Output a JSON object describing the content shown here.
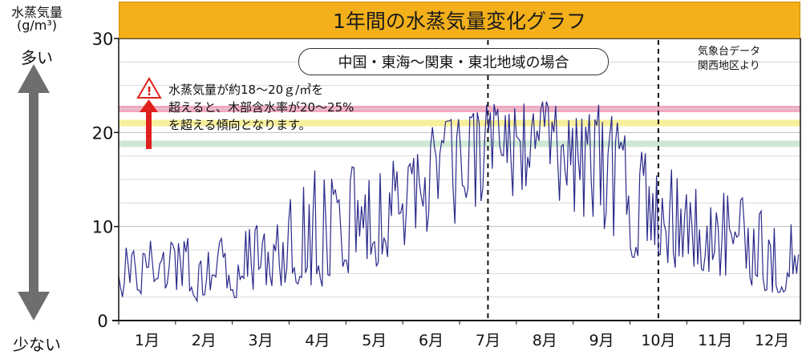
{
  "title": "1年間の水蒸気量変化グラフ",
  "y_axis": {
    "label_line1": "水蒸気量",
    "label_line2": "(g/m³)",
    "high_label": "多い",
    "low_label": "少ない"
  },
  "region_label": "中国・東海〜関東・東北地域の場合",
  "source_label": [
    "気象台データ",
    "関西地区より"
  ],
  "note": [
    "水蒸気量が約18〜20ｇ/㎥を",
    "超えると、木部含水率が20〜25%",
    "を超える傾向となります。"
  ],
  "colors": {
    "header": "#f3b01a",
    "series": "#2b2a8a",
    "band_pink": "#f2a8c0",
    "band_yellow": "#f7ef9a",
    "band_green": "#cfe8d4",
    "arrow": "#e0201c",
    "axis_arrow": "#6e6e6e"
  },
  "icons": {
    "warning": "warning-triangle-icon",
    "up_arrow": "red-up-arrow-icon"
  },
  "chart_data": {
    "type": "line",
    "title": "1年間の水蒸気量変化グラフ",
    "xlabel": "",
    "ylabel": "水蒸気量(g/m³)",
    "ylim": [
      0,
      30
    ],
    "yticks": [
      0,
      10,
      20,
      30
    ],
    "grid": true,
    "categories": [
      "1月",
      "2月",
      "3月",
      "4月",
      "5月",
      "6月",
      "7月",
      "8月",
      "9月",
      "10月",
      "11月",
      "12月"
    ],
    "monthly_mean": [
      4.8,
      5.0,
      5.8,
      8.5,
      11.2,
      16.5,
      19.5,
      20.2,
      16.5,
      9.5,
      8.3,
      5.8
    ],
    "monthly_peak": [
      9.0,
      9.5,
      11.0,
      17.5,
      17.0,
      20.5,
      23.0,
      23.3,
      23.2,
      17.5,
      16.0,
      12.0
    ],
    "monthly_low": [
      2.5,
      2.0,
      2.8,
      3.5,
      5.0,
      8.5,
      10.5,
      13.0,
      7.0,
      5.5,
      4.5,
      3.0
    ],
    "bands": [
      {
        "y": 22.5,
        "color": "pink"
      },
      {
        "y": 21.0,
        "color": "yellow"
      },
      {
        "y": 18.8,
        "color": "green"
      }
    ],
    "vlines": [
      6.5,
      9.5
    ]
  }
}
